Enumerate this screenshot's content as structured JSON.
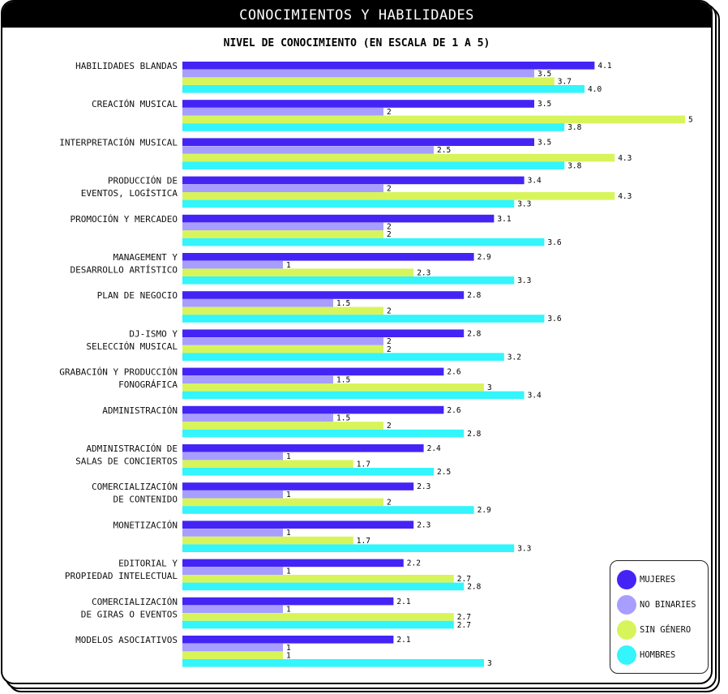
{
  "header": {
    "title": "CONOCIMIENTOS Y HABILIDADES"
  },
  "chart_data": {
    "type": "bar",
    "orientation": "horizontal",
    "title": "NIVEL DE CONOCIMIENTO (EN ESCALA DE 1 A 5)",
    "xlabel": "",
    "ylabel": "",
    "xlim": [
      0,
      5
    ],
    "grid": false,
    "legend_position": "bottom-right",
    "categories": [
      [
        "HABILIDADES BLANDAS"
      ],
      [
        "CREACIÓN MUSICAL"
      ],
      [
        "INTERPRETACIÓN MUSICAL"
      ],
      [
        "PRODUCCIÓN DE",
        "EVENTOS, LOGÍSTICA"
      ],
      [
        "PROMOCIÓN Y MERCADEO"
      ],
      [
        "MANAGEMENT Y",
        "DESARROLLO ARTÍSTICO"
      ],
      [
        "PLAN DE NEGOCIO"
      ],
      [
        "DJ-ISMO Y",
        "SELECCIÓN MUSICAL"
      ],
      [
        "GRABACIÓN Y PRODUCCIÓN",
        "FONOGRÁFICA"
      ],
      [
        "ADMINISTRACIÓN"
      ],
      [
        "ADMINISTRACIÓN DE",
        "SALAS DE CONCIERTOS"
      ],
      [
        "COMERCIALIZACIÓN",
        "DE CONTENIDO"
      ],
      [
        "MONETIZACIÓN"
      ],
      [
        "EDITORIAL Y",
        "PROPIEDAD INTELECTUAL"
      ],
      [
        "COMERCIALIZACIÓN",
        "DE GIRAS O EVENTOS"
      ],
      [
        "MODELOS ASOCIATIVOS"
      ]
    ],
    "series": [
      {
        "name": "MUJERES",
        "color": "#4424f5",
        "values": [
          4.1,
          3.5,
          3.5,
          3.4,
          3.1,
          2.9,
          2.8,
          2.8,
          2.6,
          2.6,
          2.4,
          2.3,
          2.3,
          2.2,
          2.1,
          2.1
        ],
        "labels": [
          "4.1",
          "3.5",
          "3.5",
          "3.4",
          "3.1",
          "2.9",
          "2.8",
          "2.8",
          "2.6",
          "2.6",
          "2.4",
          "2.3",
          "2.3",
          "2.2",
          "2.1",
          "2.1"
        ]
      },
      {
        "name": "NO BINARIES",
        "color": "#a89eff",
        "values": [
          3.5,
          2,
          2.5,
          2,
          2,
          1,
          1.5,
          2,
          1.5,
          1.5,
          1,
          1,
          1,
          1,
          1,
          1
        ],
        "labels": [
          "3.5",
          "2",
          "2.5",
          "2",
          "2",
          "1",
          "1.5",
          "2",
          "1.5",
          "1.5",
          "1",
          "1",
          "1",
          "1",
          "1",
          "1"
        ]
      },
      {
        "name": "SIN GÉNERO",
        "color": "#d7f55a",
        "values": [
          3.7,
          5,
          4.3,
          4.3,
          2,
          2.3,
          2,
          2,
          3,
          2,
          1.7,
          2,
          1.7,
          2.7,
          2.7,
          1
        ],
        "labels": [
          "3.7",
          "5",
          "4.3",
          "4.3",
          "2",
          "2.3",
          "2",
          "2",
          "3",
          "2",
          "1.7",
          "2",
          "1.7",
          "2.7",
          "2.7",
          "1"
        ]
      },
      {
        "name": "HOMBRES",
        "color": "#33f5fb",
        "values": [
          4.0,
          3.8,
          3.8,
          3.3,
          3.6,
          3.3,
          3.6,
          3.2,
          3.4,
          2.8,
          2.5,
          2.9,
          3.3,
          2.8,
          2.7,
          3
        ],
        "labels": [
          "4.0",
          "3.8",
          "3.8",
          "3.3",
          "3.6",
          "3.3",
          "3.6",
          "3.2",
          "3.4",
          "2.8",
          "2.5",
          "2.9",
          "3.3",
          "2.8",
          "2.7",
          "3"
        ]
      }
    ]
  },
  "legend": {
    "items": [
      {
        "label": "MUJERES",
        "color": "#4424f5"
      },
      {
        "label": "NO BINARIES",
        "color": "#a89eff"
      },
      {
        "label": "SIN GÉNERO",
        "color": "#d7f55a"
      },
      {
        "label": "HOMBRES",
        "color": "#33f5fb"
      }
    ]
  }
}
